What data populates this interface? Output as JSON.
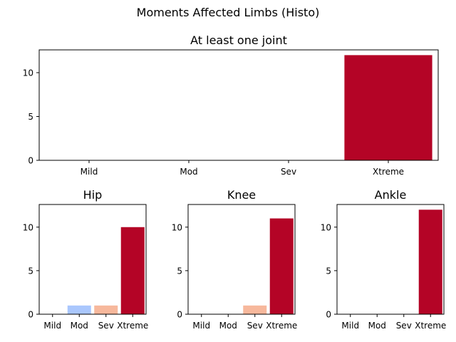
{
  "figure_title": "Moments Affected Limbs (Histo)",
  "colors": {
    "Mild": "#3b4cc0",
    "Mod": "#aac7fd",
    "Sev": "#f7b89c",
    "Xtreme": "#b40426"
  },
  "chart_data": [
    {
      "type": "bar",
      "title": "At least one joint",
      "categories": [
        "Mild",
        "Mod",
        "Sev",
        "Xtreme"
      ],
      "values": [
        0,
        0,
        0,
        12
      ],
      "ylim": [
        0,
        12.6
      ],
      "yticks": [
        0,
        5,
        10
      ],
      "xlabel": "",
      "ylabel": ""
    },
    {
      "type": "bar",
      "title": "Hip",
      "categories": [
        "Mild",
        "Mod",
        "Sev",
        "Xtreme"
      ],
      "values": [
        0,
        1,
        1,
        10
      ],
      "ylim": [
        0,
        12.6
      ],
      "yticks": [
        0,
        5,
        10
      ],
      "xlabel": "",
      "ylabel": ""
    },
    {
      "type": "bar",
      "title": "Knee",
      "categories": [
        "Mild",
        "Mod",
        "Sev",
        "Xtreme"
      ],
      "values": [
        0,
        0,
        1,
        11
      ],
      "ylim": [
        0,
        12.6
      ],
      "yticks": [
        0,
        5,
        10
      ],
      "xlabel": "",
      "ylabel": ""
    },
    {
      "type": "bar",
      "title": "Ankle",
      "categories": [
        "Mild",
        "Mod",
        "Sev",
        "Xtreme"
      ],
      "values": [
        0,
        0,
        0,
        12
      ],
      "ylim": [
        0,
        12.6
      ],
      "yticks": [
        0,
        5,
        10
      ],
      "xlabel": "",
      "ylabel": ""
    }
  ]
}
